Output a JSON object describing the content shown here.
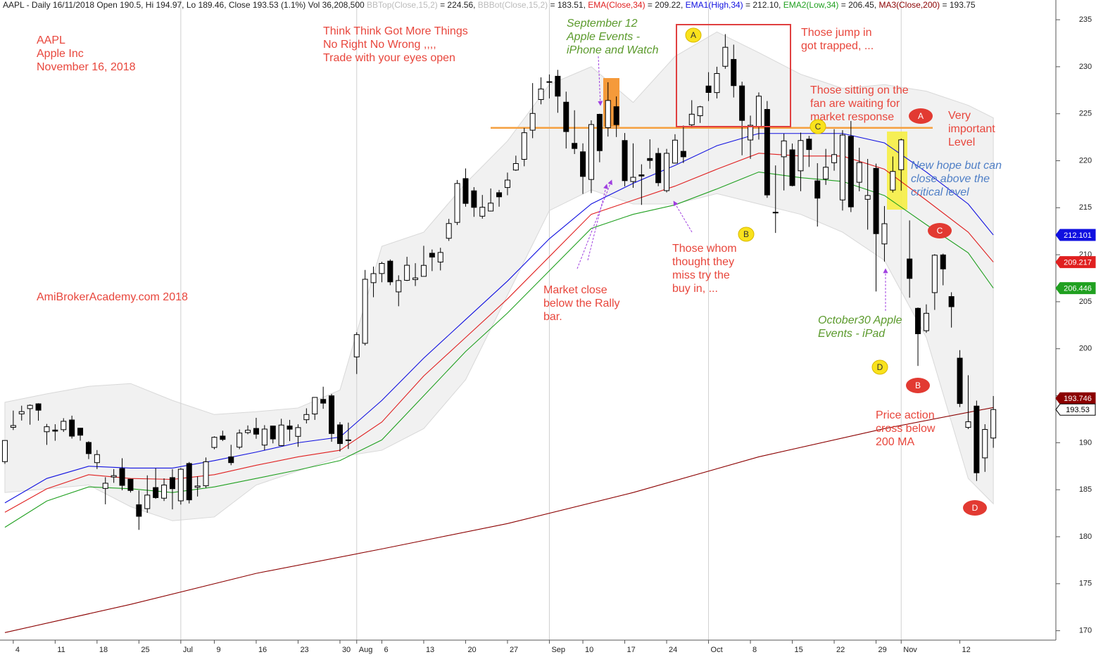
{
  "chart_data": {
    "type": "candlestick",
    "header": [
      {
        "text": "AAPL - Daily 16/11/2018 Open 190.5, Hi 194.97, Lo 189.46, Close 193.53 (1.1%) Vol 36,208,500 ",
        "color": "#222222"
      },
      {
        "text": "BBTop(Close,15,2)",
        "color": "#bbbbbb"
      },
      {
        "text": " = 224.56, ",
        "color": "#222222"
      },
      {
        "text": "BBBot(Close,15,2)",
        "color": "#bbbbbb"
      },
      {
        "text": " = 183.51, ",
        "color": "#222222"
      },
      {
        "text": "EMA(Close,34)",
        "color": "#e02020"
      },
      {
        "text": " = 209.22, ",
        "color": "#222222"
      },
      {
        "text": "EMA1(High,34)",
        "color": "#1010e0"
      },
      {
        "text": " = 212.10, ",
        "color": "#222222"
      },
      {
        "text": "EMA2(Low,34)",
        "color": "#20a020"
      },
      {
        "text": " = 206.45, ",
        "color": "#222222"
      },
      {
        "text": "MA3(Close,200)",
        "color": "#8b0000"
      },
      {
        "text": " = 193.75",
        "color": "#222222"
      }
    ],
    "categories": [
      null,
      "4",
      null,
      null,
      null,
      null,
      "11",
      null,
      null,
      null,
      null,
      "18",
      null,
      null,
      null,
      null,
      "25",
      null,
      null,
      null,
      null,
      "Jul",
      null,
      null,
      null,
      "9",
      null,
      null,
      null,
      null,
      "16",
      null,
      null,
      null,
      null,
      "23",
      null,
      null,
      null,
      null,
      "30",
      null,
      "Aug",
      null,
      null,
      "6",
      null,
      null,
      null,
      null,
      "13",
      null,
      null,
      null,
      null,
      "20",
      null,
      null,
      null,
      null,
      "27",
      null,
      null,
      null,
      null,
      "Sep",
      null,
      null,
      null,
      "10",
      null,
      null,
      null,
      null,
      "17",
      null,
      null,
      null,
      null,
      "24",
      null,
      null,
      null,
      null,
      "Oct",
      null,
      null,
      null,
      null,
      "8",
      null,
      null,
      null,
      null,
      "15",
      null,
      null,
      null,
      null,
      "22",
      null,
      null,
      null,
      null,
      "29",
      null,
      null,
      "Nov",
      null,
      null,
      null,
      null,
      null,
      null,
      "12",
      null,
      null,
      null,
      null
    ],
    "open": [
      187.99,
      191.64,
      193.07,
      193.63,
      194.14,
      191.17,
      191.35,
      191.39,
      192.42,
      191.55,
      190.03,
      187.88,
      185.14,
      186.35,
      187.25,
      186.12,
      183.4,
      182.99,
      185.23,
      184.1,
      186.29,
      183.82,
      187.79,
      185.26,
      185.42,
      189.5,
      190.71,
      188.5,
      189.53,
      191.08,
      191.52,
      189.75,
      191.78,
      189.69,
      191.78,
      190.68,
      192.45,
      193.06,
      194.61,
      194.99,
      191.9,
      190.3,
      199.13,
      200.58,
      207.03,
      208.0,
      209.32,
      206.05,
      207.28,
      207.36,
      207.7,
      210.16,
      209.22,
      211.75,
      213.44,
      218.1,
      216.8,
      214.1,
      214.65,
      216.6,
      217.15,
      219.01,
      220.15,
      223.25,
      226.51,
      228.41,
      228.99,
      226.23,
      221.85,
      220.95,
      218.01,
      224.94,
      223.52,
      225.75,
      222.15,
      217.79,
      218.5,
      220.24,
      220.78,
      216.82,
      219.75,
      221.0,
      223.82,
      224.79,
      227.95,
      227.25,
      230.05,
      230.78,
      227.96,
      222.21,
      223.64,
      225.46,
      214.52,
      220.42,
      221.16,
      218.93,
      222.3,
      217.86,
      218.06,
      219.79,
      215.83,
      222.6,
      217.71,
      215.9,
      219.19,
      211.15,
      216.88,
      219.05,
      209.55,
      204.3,
      201.92,
      205.97,
      209.98,
      205.55,
      199.0,
      191.63,
      193.9,
      188.39,
      190.5
    ],
    "high": [
      190.26,
      193.42,
      193.94,
      194.08,
      194.2,
      192.0,
      191.97,
      192.61,
      192.88,
      191.57,
      190.16,
      189.22,
      186.33,
      187.2,
      188.35,
      186.15,
      184.92,
      186.53,
      187.28,
      186.21,
      187.19,
      187.3,
      187.95,
      186.41,
      188.43,
      190.68,
      191.28,
      189.78,
      191.41,
      191.84,
      192.65,
      191.87,
      191.8,
      192.55,
      192.43,
      191.96,
      193.66,
      194.85,
      195.96,
      195.19,
      192.2,
      192.14,
      201.76,
      208.38,
      208.74,
      209.25,
      209.5,
      207.81,
      209.78,
      209.1,
      210.95,
      210.56,
      210.74,
      213.81,
      217.95,
      219.18,
      217.19,
      216.36,
      217.05,
      216.9,
      218.74,
      220.54,
      223.49,
      228.26,
      228.87,
      229.18,
      229.67,
      227.35,
      225.37,
      221.85,
      224.3,
      225.0,
      228.35,
      226.84,
      222.95,
      221.85,
      219.62,
      222.28,
      221.36,
      221.26,
      222.82,
      223.75,
      226.44,
      225.84,
      229.42,
      230.0,
      233.47,
      232.35,
      228.41,
      224.8,
      227.27,
      226.35,
      219.5,
      222.88,
      221.83,
      222.99,
      222.64,
      219.74,
      221.26,
      223.36,
      223.25,
      224.23,
      221.38,
      220.19,
      219.69,
      215.18,
      220.45,
      222.36,
      213.65,
      204.39,
      204.72,
      210.06,
      210.12,
      206.01,
      199.85,
      197.18,
      194.48,
      191.97,
      194.97
    ],
    "low": [
      187.75,
      191.35,
      192.36,
      191.92,
      192.34,
      189.77,
      190.21,
      191.15,
      190.44,
      190.22,
      188.26,
      187.2,
      183.45,
      185.73,
      184.94,
      184.7,
      180.73,
      182.54,
      184.03,
      183.8,
      182.91,
      183.42,
      183.54,
      184.28,
      185.2,
      189.3,
      190.18,
      187.61,
      189.31,
      190.9,
      190.42,
      189.2,
      189.93,
      189.69,
      190.17,
      189.56,
      192.05,
      192.43,
      193.61,
      190.1,
      189.07,
      189.34,
      197.31,
      200.35,
      205.48,
      207.07,
      206.76,
      204.52,
      207.2,
      206.67,
      207.7,
      208.26,
      208.33,
      211.47,
      213.16,
      215.11,
      214.03,
      213.84,
      214.6,
      215.11,
      216.33,
      218.92,
      219.41,
      222.4,
      226.0,
      226.63,
      225.1,
      221.3,
      220.71,
      216.47,
      216.56,
      219.84,
      222.57,
      222.52,
      217.27,
      217.12,
      215.3,
      219.15,
      217.29,
      216.63,
      219.7,
      219.76,
      223.54,
      224.02,
      226.35,
      226.63,
      229.78,
      226.73,
      220.58,
      220.2,
      222.25,
      216.05,
      212.32,
      216.84,
      217.27,
      216.76,
      219.34,
      213.0,
      217.43,
      218.94,
      214.7,
      214.54,
      216.75,
      212.67,
      206.09,
      209.27,
      216.62,
      216.81,
      205.43,
      198.17,
      201.69,
      204.13,
      206.75,
      202.25,
      193.79,
      191.45,
      185.93,
      186.9,
      189.46
    ],
    "close": [
      190.24,
      191.83,
      193.31,
      193.98,
      193.46,
      191.7,
      191.23,
      192.28,
      190.7,
      190.8,
      188.84,
      188.74,
      185.69,
      186.5,
      185.46,
      184.92,
      182.17,
      184.43,
      184.16,
      185.5,
      185.11,
      187.18,
      183.92,
      185.4,
      187.97,
      190.58,
      190.35,
      187.88,
      191.03,
      191.33,
      190.91,
      191.45,
      190.4,
      191.88,
      191.44,
      191.61,
      193.0,
      194.82,
      194.21,
      190.98,
      189.91,
      190.29,
      201.5,
      207.39,
      207.99,
      209.07,
      207.11,
      207.25,
      208.88,
      207.53,
      208.87,
      209.75,
      210.24,
      213.32,
      217.58,
      215.46,
      215.04,
      215.05,
      215.49,
      216.16,
      217.94,
      219.7,
      222.98,
      225.03,
      227.63,
      228.36,
      226.87,
      223.1,
      221.3,
      218.33,
      223.85,
      221.07,
      226.41,
      223.84,
      217.88,
      218.24,
      218.37,
      220.03,
      217.66,
      220.79,
      222.19,
      220.42,
      224.95,
      225.74,
      227.26,
      229.28,
      232.07,
      227.99,
      224.29,
      223.77,
      226.87,
      216.36,
      214.45,
      222.11,
      217.36,
      222.15,
      221.19,
      216.02,
      219.31,
      220.65,
      222.73,
      215.09,
      219.8,
      216.3,
      212.24,
      213.3,
      218.86,
      222.22,
      207.48,
      201.59,
      203.77,
      209.95,
      208.49,
      204.47,
      194.17,
      192.23,
      186.8,
      191.41,
      193.53
    ],
    "band": {
      "color": "#f1f1f1",
      "x": [
        0,
        5,
        10,
        15,
        20,
        25,
        30,
        35,
        40,
        45,
        50,
        55,
        60,
        65,
        70,
        75,
        80,
        85,
        90,
        95,
        100,
        105,
        110,
        115,
        118
      ],
      "upper": [
        194.3,
        195.2,
        196.0,
        196.3,
        194.5,
        193.0,
        193.3,
        193.7,
        195.6,
        210.9,
        212.4,
        217.6,
        222.1,
        228.1,
        230.0,
        226.2,
        231.1,
        233.7,
        231.5,
        229.2,
        227.7,
        228.1,
        227.4,
        225.9,
        224.56
      ],
      "lower": [
        184.7,
        185.1,
        185.5,
        183.2,
        181.7,
        182.1,
        185.5,
        187.0,
        188.5,
        189.2,
        191.5,
        196.7,
        205.7,
        214.7,
        216.9,
        215.4,
        215.4,
        216.5,
        215.4,
        214.3,
        212.4,
        209.4,
        201.2,
        186.2,
        183.51
      ]
    },
    "series": [
      {
        "color": "#1010e0",
        "x": [
          0,
          5,
          10,
          15,
          20,
          25,
          30,
          35,
          40,
          45,
          50,
          55,
          60,
          65,
          70,
          75,
          80,
          85,
          90,
          95,
          100,
          105,
          110,
          115,
          118
        ],
        "values": [
          183.6,
          186.2,
          187.5,
          187.3,
          187.3,
          188.1,
          189.0,
          190.0,
          190.6,
          194.5,
          199.0,
          203.1,
          207.2,
          211.7,
          215.4,
          217.6,
          219.5,
          221.6,
          222.9,
          222.9,
          222.9,
          221.9,
          218.8,
          215.4,
          212.1
        ]
      },
      {
        "color": "#e02020",
        "x": [
          0,
          5,
          10,
          15,
          20,
          25,
          30,
          35,
          40,
          45,
          50,
          55,
          60,
          65,
          70,
          75,
          80,
          85,
          90,
          95,
          100,
          105,
          110,
          115,
          118
        ],
        "values": [
          182.6,
          185.1,
          186.6,
          186.2,
          186.1,
          186.6,
          187.6,
          188.5,
          189.2,
          192.2,
          197.1,
          201.2,
          205.3,
          209.8,
          214.3,
          215.8,
          217.3,
          219.1,
          220.8,
          220.5,
          220.5,
          219.1,
          215.8,
          212.4,
          209.22
        ]
      },
      {
        "color": "#20a020",
        "x": [
          0,
          5,
          10,
          15,
          20,
          25,
          30,
          35,
          40,
          45,
          50,
          55,
          60,
          65,
          70,
          75,
          80,
          85,
          90,
          95,
          100,
          105,
          110,
          115,
          118
        ],
        "values": [
          181.0,
          183.8,
          185.3,
          185.1,
          184.7,
          185.3,
          186.2,
          187.1,
          188.1,
          190.3,
          195.0,
          199.7,
          203.8,
          208.3,
          212.8,
          214.3,
          215.3,
          217.0,
          218.8,
          218.2,
          217.8,
          216.3,
          213.2,
          210.2,
          206.45
        ]
      },
      {
        "color": "#8b0000",
        "x": [
          0,
          15,
          30,
          45,
          60,
          75,
          90,
          105,
          118
        ],
        "values": [
          169.8,
          172.8,
          176.1,
          178.7,
          181.4,
          184.7,
          188.5,
          191.5,
          193.75
        ]
      }
    ],
    "level": {
      "value": 223.5,
      "color": "#f5a040"
    },
    "price_labels": [
      {
        "value": 212.101,
        "color": "#1010e0",
        "text_color": "#ffffff"
      },
      {
        "value": 209.217,
        "color": "#e02020",
        "text_color": "#ffffff"
      },
      {
        "value": 206.446,
        "color": "#20a020",
        "text_color": "#ffffff"
      },
      {
        "value": 193.746,
        "color": "#8b0000",
        "text_color": "#ffffff"
      },
      {
        "value": 193.53,
        "color": "#ffffff",
        "text_color": "#000000"
      }
    ],
    "ylim": [
      169,
      237.1
    ],
    "yticks": [
      170,
      175,
      180,
      185,
      190,
      195,
      200,
      205,
      210,
      215,
      220,
      225,
      230,
      235
    ],
    "annotations": [
      {
        "lines": [
          "AAPL",
          "Apple Inc",
          "November 16, 2018"
        ]
      },
      {
        "lines": [
          "Think Think Got More Things",
          "No Right No Wrong ,,,,",
          "Trade with your eyes open"
        ]
      },
      {
        "lines": [
          "September 12",
          "Apple Events -",
          "iPhone and Watch"
        ]
      },
      {
        "lines": [
          "Those jump in",
          "got trapped, ..."
        ]
      },
      {
        "lines": [
          "Those sitting on the",
          "fan are waiting for",
          "market response"
        ]
      },
      {
        "lines": [
          "Very",
          "important",
          "Level"
        ]
      },
      {
        "lines": [
          "New hope but can",
          "close above the",
          "critical level"
        ]
      },
      {
        "lines": [
          "Those whom",
          "thought they",
          "miss try the",
          "buy in, ..."
        ]
      },
      {
        "lines": [
          "Market close",
          "below the Rally",
          "bar."
        ]
      },
      {
        "lines": [
          "AmiBrokerAcademy.com  2018"
        ]
      },
      {
        "lines": [
          "October30 Apple",
          "Events - iPad"
        ]
      },
      {
        "lines": [
          "Price action",
          "cross below",
          "200 MA"
        ]
      }
    ],
    "markers": [
      "A",
      "B",
      "C",
      "D",
      "A",
      "C",
      "B",
      "D"
    ]
  }
}
